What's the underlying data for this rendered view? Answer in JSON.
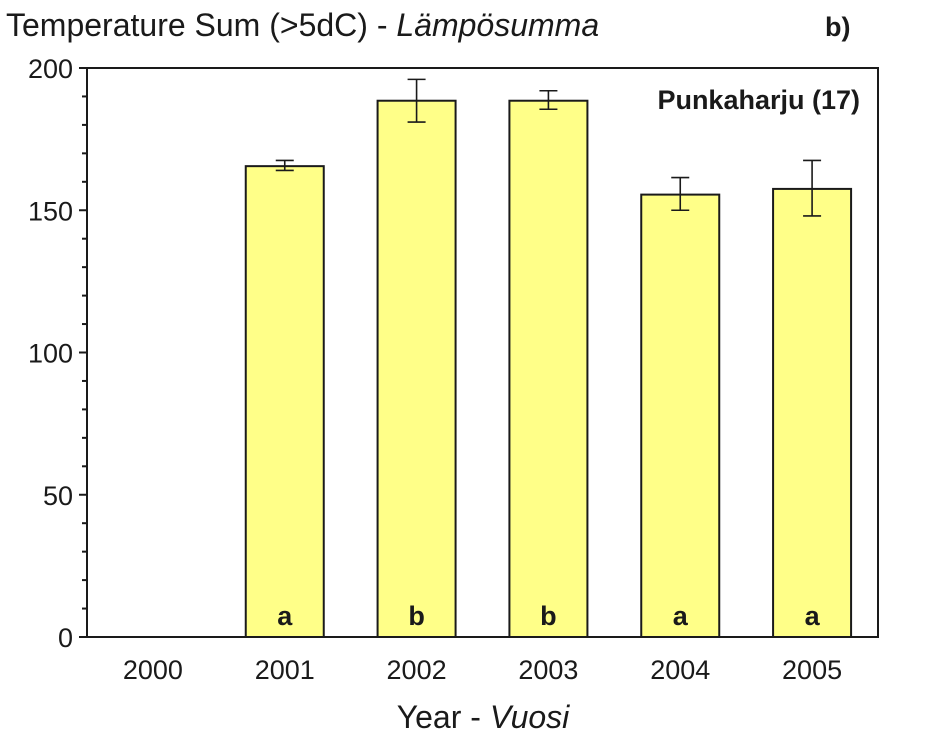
{
  "chart_data": {
    "type": "bar",
    "title": "Temperature Sum (>5dC) - ",
    "title_italic": "Lämpösumma",
    "panel_label": "b)",
    "annotation": "Punkaharju (17)",
    "xlabel": "Year - ",
    "xlabel_italic": "Vuosi",
    "ylabel": "",
    "ylim": [
      0,
      200
    ],
    "yticks": [
      "0",
      "50",
      "100",
      "150",
      "200"
    ],
    "categories": [
      "2000",
      "2001",
      "2002",
      "2003",
      "2004",
      "2005"
    ],
    "values": [
      null,
      165.5,
      188.5,
      188.5,
      155.5,
      157.5
    ],
    "error_low": [
      null,
      164,
      181,
      185.5,
      150,
      148
    ],
    "error_high": [
      null,
      167.5,
      196,
      192,
      161.5,
      167.5
    ],
    "group_letters": [
      "",
      "a",
      "b",
      "b",
      "a",
      "a"
    ],
    "bar_color": "#ffff88",
    "grid": false
  }
}
